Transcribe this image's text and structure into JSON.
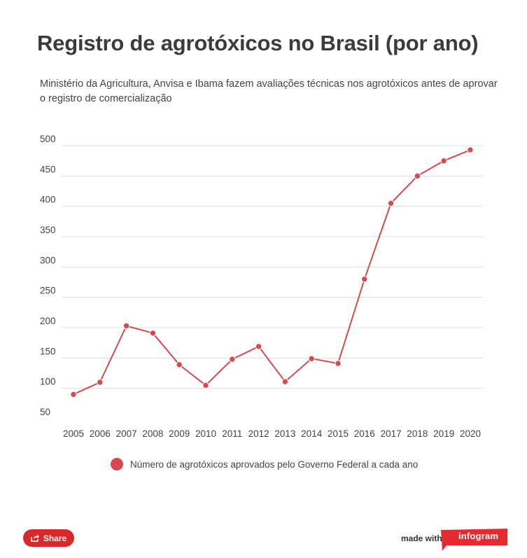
{
  "header": {
    "title": "Registro de agrotóxicos no Brasil (por ano)",
    "subtitle": "Ministério da Agricultura, Anvisa e Ibama fazem avaliações técnicas nos agrotóxicos antes de aprovar o registro de comercialização"
  },
  "colors": {
    "series": "#d44a50",
    "grid": "#dddddd",
    "share": "#d62a2a",
    "brand": "#e42b2f"
  },
  "chart_data": {
    "type": "line",
    "x": [
      "2005",
      "2006",
      "2007",
      "2008",
      "2009",
      "2010",
      "2011",
      "2012",
      "2013",
      "2014",
      "2015",
      "2016",
      "2017",
      "2018",
      "2019",
      "2020"
    ],
    "series": [
      {
        "name": "Número de agrotóxicos aprovados pelo Governo Federal a cada ano",
        "values": [
          90,
          110,
          203,
          191,
          139,
          105,
          148,
          169,
          111,
          149,
          141,
          280,
          405,
          450,
          475,
          493
        ]
      }
    ],
    "yticks": [
      50,
      100,
      150,
      200,
      250,
      300,
      350,
      400,
      450,
      500
    ],
    "ylim": [
      50,
      500
    ],
    "grid": true,
    "legend": "bottom"
  },
  "footer": {
    "share_label": "Share",
    "made_with": "made with",
    "brand": "infogram",
    "share_icon": "share-icon"
  }
}
